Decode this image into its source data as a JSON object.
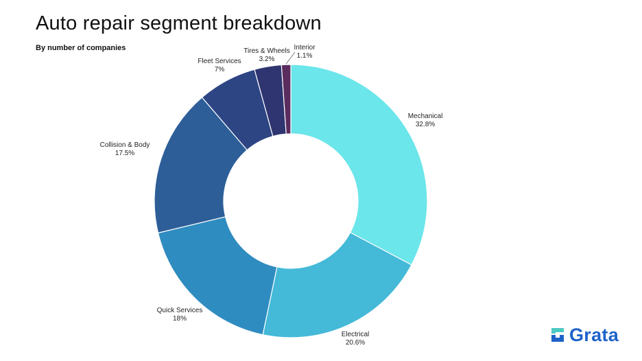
{
  "header": {
    "title": "Auto repair segment breakdown",
    "subtitle": "By number of companies"
  },
  "brand": {
    "name": "Grata",
    "color": "#1e63c8",
    "mark_icon": "grata-logo-icon"
  },
  "chart_data": {
    "type": "pie",
    "variant": "donut",
    "title": "Auto repair segment breakdown",
    "subtitle": "By number of companies",
    "start_angle_deg": 0,
    "direction": "clockwise",
    "legend": "none",
    "slices": [
      {
        "label": "Mechanical",
        "value": 32.8,
        "display": "32.8%",
        "color": "#6be6ea"
      },
      {
        "label": "Electrical",
        "value": 20.6,
        "display": "20.6%",
        "color": "#44b9d8"
      },
      {
        "label": "Quick Services",
        "value": 18,
        "display": "18%",
        "color": "#2f8cc0"
      },
      {
        "label": "Collision & Body",
        "value": 17.5,
        "display": "17.5%",
        "color": "#2d5e98"
      },
      {
        "label": "Fleet Services",
        "value": 7,
        "display": "7%",
        "color": "#2e4584"
      },
      {
        "label": "Tires & Wheels",
        "value": 3.2,
        "display": "3.2%",
        "color": "#2e3570"
      },
      {
        "label": "Interior",
        "value": 1.1,
        "display": "1.1%",
        "color": "#5a2d5e"
      }
    ]
  }
}
